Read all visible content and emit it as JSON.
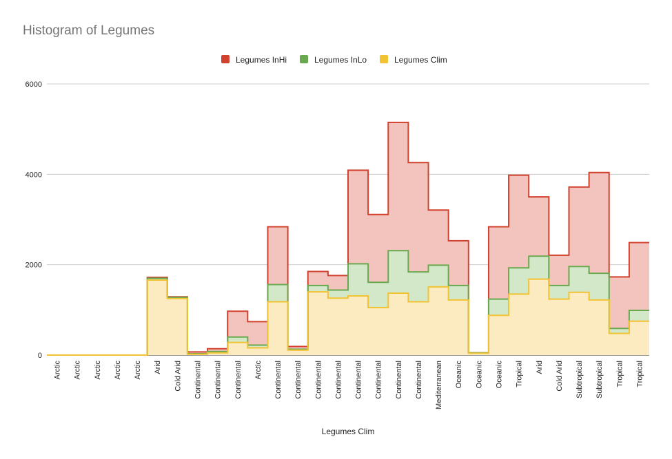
{
  "chart_data": {
    "type": "area",
    "title": "Histogram of Legumes",
    "xlabel": "Legumes Clim",
    "ylabel": "",
    "ylim": [
      0,
      6000
    ],
    "yticks": [
      0,
      2000,
      4000,
      6000
    ],
    "grid": true,
    "legend_position": "top",
    "categories": [
      "Arctic",
      "Arctic",
      "Arctic",
      "Arctic",
      "Arctic",
      "Arid",
      "Cold Arid",
      "Continental",
      "Continental",
      "Continental",
      "Arctic",
      "Continental",
      "Continental",
      "Continental",
      "Continental",
      "Continental",
      "Continental",
      "Continental",
      "Continental",
      "Mediterranean",
      "Oceanic",
      "Oceanic",
      "Oceanic",
      "Tropical",
      "Arid",
      "Cold Arid",
      "Subtropical",
      "Subtropical",
      "Tropical",
      "Tropical"
    ],
    "series": [
      {
        "name": "Legumes InHi",
        "color": "#d2402e",
        "fill": "#f2c4bd",
        "values": [
          0,
          0,
          0,
          0,
          0,
          1720,
          1290,
          70,
          140,
          970,
          740,
          2840,
          190,
          1850,
          1760,
          4090,
          3110,
          5150,
          4260,
          3210,
          2530,
          50,
          2840,
          3980,
          3500,
          2210,
          3720,
          4040,
          1730,
          2490
        ]
      },
      {
        "name": "Legumes InLo",
        "color": "#6aa84f",
        "fill": "#d3e8c8",
        "values": [
          0,
          0,
          0,
          0,
          0,
          1700,
          1280,
          30,
          80,
          400,
          220,
          1560,
          130,
          1540,
          1440,
          2020,
          1610,
          2310,
          1840,
          1990,
          1540,
          50,
          1240,
          1930,
          2190,
          1540,
          1960,
          1810,
          590,
          990
        ]
      },
      {
        "name": "Legumes Clim",
        "color": "#f1c232",
        "fill": "#fcebc0",
        "values": [
          0,
          0,
          0,
          0,
          0,
          1660,
          1250,
          20,
          50,
          280,
          160,
          1180,
          110,
          1400,
          1260,
          1310,
          1050,
          1370,
          1180,
          1510,
          1220,
          40,
          880,
          1350,
          1680,
          1240,
          1390,
          1220,
          480,
          750
        ]
      }
    ]
  }
}
